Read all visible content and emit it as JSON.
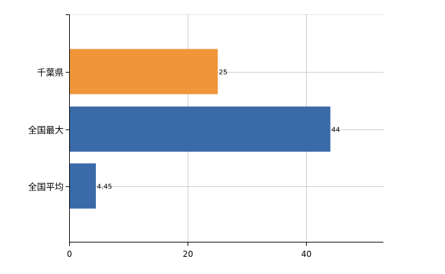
{
  "chart_data": {
    "type": "bar",
    "orientation": "horizontal",
    "categories": [
      "千葉県",
      "全国最大",
      "全国平均"
    ],
    "values": [
      25,
      44,
      4.45
    ],
    "data_labels": [
      "25",
      "44",
      "4.45"
    ],
    "colors": [
      "#f0953a",
      "#3a6aa8",
      "#3a6aa8"
    ],
    "xlim": [
      0,
      53
    ],
    "xticks": [
      0,
      20,
      40
    ],
    "title": "",
    "xlabel": "",
    "ylabel": "",
    "grid": true,
    "legend": "none"
  }
}
